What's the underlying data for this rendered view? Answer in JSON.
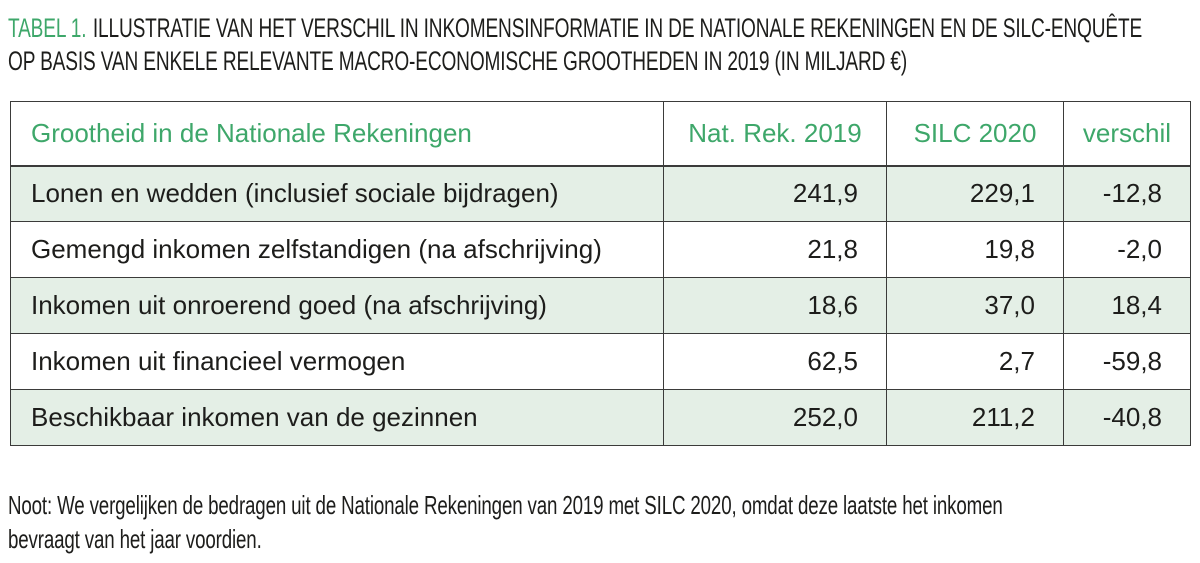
{
  "colors": {
    "accent_green": "#3ea76a",
    "row_green": "#e4efe6",
    "border": "#3b3b3a",
    "text": "#1d1d1b"
  },
  "title": {
    "label": "TABEL 1.",
    "line1_rest": "ILLUSTRATIE VAN HET VERSCHIL IN INKOMENSINFORMATIE IN DE NATIONALE REKENINGEN EN DE SILC-ENQUÊTE",
    "line2": "OP BASIS VAN ENKELE RELEVANTE MACRO-ECONOMISCHE GROOTHEDEN IN 2019 (IN MILJARD €)"
  },
  "table": {
    "headers": [
      "Grootheid in de Nationale Rekeningen",
      "Nat. Rek. 2019",
      "SILC 2020",
      "verschil"
    ],
    "rows": [
      [
        "Lonen en wedden (inclusief sociale bijdragen)",
        "241,9",
        "229,1",
        "-12,8"
      ],
      [
        "Gemengd inkomen zelfstandigen (na afschrijving)",
        "21,8",
        "19,8",
        "-2,0"
      ],
      [
        "Inkomen uit onroerend goed (na afschrijving)",
        "18,6",
        "37,0",
        "18,4"
      ],
      [
        "Inkomen uit financieel vermogen",
        "62,5",
        "2,7",
        "-59,8"
      ],
      [
        "Beschikbaar inkomen van de gezinnen",
        "252,0",
        "211,2",
        "-40,8"
      ]
    ]
  },
  "note": {
    "line1": "Noot: We vergelijken de bedragen uit de Nationale Rekeningen van 2019 met SILC 2020, omdat deze laatste het inkomen",
    "line2": "bevraagt van het jaar voordien."
  }
}
